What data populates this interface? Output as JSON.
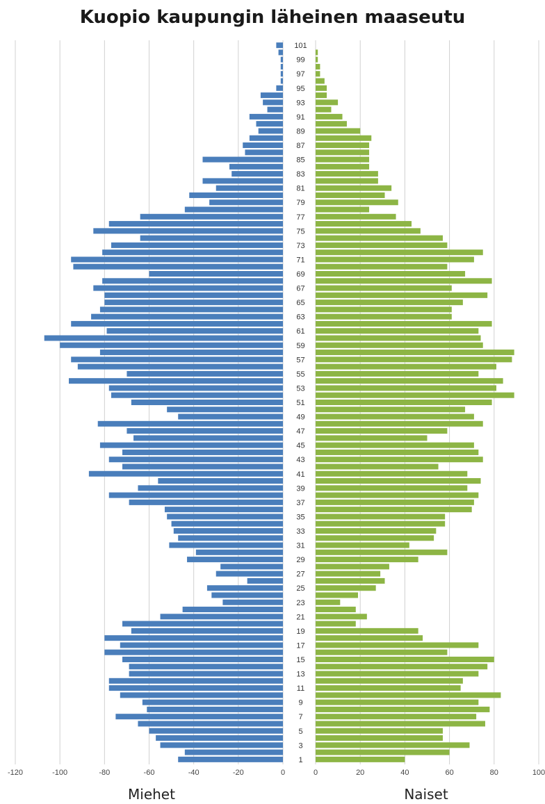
{
  "chart_data": {
    "type": "bar",
    "orientation": "horizontal-pyramid",
    "title": "Kuopio kaupungin läheinen maaseutu",
    "left_panel": {
      "label": "Miehet",
      "color": "#4a7ebb",
      "xlim": [
        -120,
        0
      ],
      "ticks": [
        -120,
        -100,
        -80,
        -60,
        -40,
        -20,
        0
      ]
    },
    "right_panel": {
      "label": "Naiset",
      "color": "#8db545",
      "xlim": [
        0,
        100
      ],
      "ticks": [
        0,
        20,
        40,
        60,
        80,
        100
      ]
    },
    "age_labels": [
      "1",
      "3",
      "5",
      "7",
      "9",
      "11",
      "13",
      "15",
      "17",
      "19",
      "21",
      "23",
      "25",
      "27",
      "29",
      "31",
      "33",
      "35",
      "37",
      "39",
      "41",
      "43",
      "45",
      "47",
      "49",
      "51",
      "53",
      "55",
      "57",
      "59",
      "61",
      "63",
      "65",
      "67",
      "69",
      "71",
      "73",
      "75",
      "77",
      "79",
      "81",
      "83",
      "85",
      "87",
      "89",
      "91",
      "93",
      "95",
      "97",
      "99",
      "101"
    ],
    "grid": true,
    "series": [
      {
        "name": "Miehet",
        "ages_from": 1,
        "values": [
          -47,
          -44,
          -55,
          -57,
          -60,
          -65,
          -75,
          -61,
          -63,
          -73,
          -78,
          -78,
          -69,
          -69,
          -72,
          -80,
          -73,
          -80,
          -68,
          -72,
          -55,
          -45,
          -27,
          -32,
          -34,
          -16,
          -30,
          -28,
          -43,
          -39,
          -51,
          -47,
          -49,
          -50,
          -52,
          -53,
          -69,
          -78,
          -65,
          -56,
          -87,
          -72,
          -78,
          -72,
          -82,
          -67,
          -70,
          -83,
          -47,
          -52,
          -68,
          -77,
          -78,
          -96,
          -70,
          -92,
          -95,
          -82,
          -100,
          -107,
          -79,
          -95,
          -86,
          -82,
          -80,
          -80,
          -85,
          -81,
          -60,
          -94,
          -95,
          -81,
          -77,
          -64,
          -85,
          -78,
          -64,
          -44,
          -33,
          -42,
          -30,
          -36,
          -23,
          -24,
          -36,
          -17,
          -18,
          -15,
          -11,
          -12,
          -15,
          -7,
          -9,
          -10,
          -3,
          -1,
          -1,
          -1,
          -1,
          -2,
          -3
        ]
      },
      {
        "name": "Naiset",
        "ages_from": 1,
        "values": [
          40,
          60,
          69,
          57,
          57,
          76,
          72,
          78,
          73,
          83,
          65,
          66,
          73,
          77,
          80,
          59,
          73,
          48,
          46,
          18,
          23,
          18,
          11,
          19,
          27,
          31,
          29,
          33,
          46,
          59,
          42,
          53,
          54,
          58,
          58,
          70,
          71,
          73,
          68,
          74,
          68,
          55,
          75,
          73,
          71,
          50,
          59,
          75,
          71,
          67,
          79,
          89,
          81,
          84,
          73,
          81,
          88,
          89,
          75,
          74,
          73,
          79,
          61,
          61,
          66,
          77,
          61,
          79,
          67,
          59,
          71,
          75,
          59,
          57,
          47,
          43,
          36,
          24,
          37,
          31,
          34,
          28,
          28,
          24,
          24,
          24,
          24,
          25,
          20,
          14,
          12,
          7,
          10,
          5,
          5,
          4,
          2,
          2,
          1,
          1,
          0
        ]
      }
    ]
  }
}
